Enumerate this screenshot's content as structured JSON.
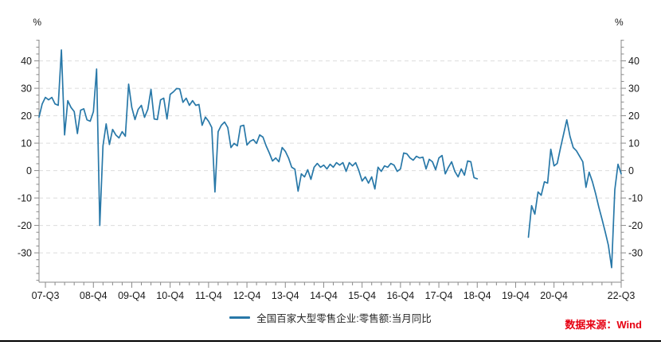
{
  "page": {
    "background": "#ffffff"
  },
  "chart_data": {
    "type": "line",
    "title": "",
    "grid": "horizontal-dashed",
    "source_note": "数据来源：Wind",
    "source_color": "#e60012",
    "legend": {
      "position": "bottom-center"
    },
    "y_axis": {
      "unit": "%",
      "min": -40.7,
      "max": 47.7,
      "major_ticks": [
        40,
        30,
        20,
        10,
        0,
        -10,
        -20,
        -30
      ],
      "minor_step": 2.5,
      "sides": "both"
    },
    "x_axis": {
      "start_month": "2007-07",
      "end_month": "2022-09",
      "frequency": "monthly",
      "minor_tick_every_months": 3,
      "tick_labels": [
        {
          "label": "07-Q3",
          "month_index": 2
        },
        {
          "label": "08-Q4",
          "month_index": 17
        },
        {
          "label": "09-Q4",
          "month_index": 29
        },
        {
          "label": "10-Q4",
          "month_index": 41
        },
        {
          "label": "11-Q4",
          "month_index": 53
        },
        {
          "label": "12-Q4",
          "month_index": 65
        },
        {
          "label": "13-Q4",
          "month_index": 77
        },
        {
          "label": "14-Q4",
          "month_index": 89
        },
        {
          "label": "15-Q4",
          "month_index": 101
        },
        {
          "label": "16-Q4",
          "month_index": 113
        },
        {
          "label": "17-Q4",
          "month_index": 125
        },
        {
          "label": "18-Q4",
          "month_index": 137
        },
        {
          "label": "19-Q4",
          "month_index": 149
        },
        {
          "label": "20-Q4",
          "month_index": 161
        },
        {
          "label": "22-Q3",
          "month_index": 182
        }
      ]
    },
    "series": [
      {
        "name": "全国百家大型零售企业:零售额:当月同比",
        "color": "#2878a8",
        "start_month": "2007-07",
        "frequency": "monthly",
        "values": [
          19.5,
          24.3,
          26.7,
          25.8,
          26.7,
          24.3,
          23.8,
          44.0,
          13.0,
          25.5,
          23.0,
          21.5,
          13.5,
          22.0,
          22.5,
          18.5,
          18.0,
          21.5,
          37.0,
          -20.0,
          9.0,
          17.0,
          9.5,
          15.0,
          13.0,
          11.9,
          14.2,
          12.5,
          31.5,
          23.0,
          18.6,
          22.3,
          23.8,
          19.4,
          22.3,
          29.6,
          18.8,
          18.6,
          25.8,
          26.4,
          18.8,
          27.8,
          28.7,
          29.9,
          29.8,
          24.9,
          26.4,
          23.8,
          25.5,
          23.8,
          24.1,
          16.5,
          19.5,
          18.0,
          15.7,
          -7.8,
          14.2,
          16.5,
          17.7,
          15.7,
          8.4,
          9.9,
          9.0,
          16.2,
          16.5,
          9.3,
          10.7,
          11.3,
          9.9,
          13.0,
          12.2,
          9.0,
          6.4,
          3.5,
          4.6,
          3.2,
          8.4,
          7.0,
          4.6,
          1.2,
          0.5,
          -7.5,
          -1.2,
          -2.3,
          0.3,
          -3.2,
          1.2,
          2.6,
          1.2,
          2.0,
          0.6,
          2.3,
          1.2,
          2.9,
          2.0,
          2.9,
          -0.3,
          2.9,
          1.7,
          2.9,
          0.0,
          -3.8,
          -2.3,
          -4.6,
          -2.3,
          -6.7,
          1.2,
          -0.3,
          1.7,
          1.2,
          2.6,
          2.0,
          -0.3,
          0.6,
          6.4,
          6.1,
          4.6,
          3.8,
          5.2,
          4.6,
          4.9,
          0.6,
          4.1,
          3.2,
          0.3,
          4.6,
          5.5,
          -1.2,
          1.2,
          3.2,
          -0.3,
          -2.3,
          0.6,
          -1.7,
          3.5,
          3.2,
          -2.6,
          -3.0,
          null,
          null,
          null,
          null,
          null,
          null,
          null,
          null,
          null,
          null,
          null,
          null,
          null,
          null,
          null,
          -24.3,
          -12.8,
          -15.9,
          -7.8,
          -9.0,
          -4.1,
          -4.6,
          7.8,
          1.7,
          2.6,
          8.1,
          13.3,
          18.5,
          12.5,
          8.4,
          7.2,
          5.2,
          3.2,
          -6.1,
          -0.6,
          -4.1,
          -8.4,
          -13.3,
          -17.7,
          -22.3,
          -27.2,
          -35.4,
          -7.0,
          2.3,
          -1.2
        ]
      }
    ]
  }
}
